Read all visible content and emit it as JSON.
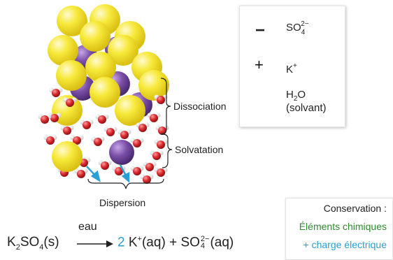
{
  "legend": {
    "sulfate": {
      "sym": "−",
      "text": "SO",
      "sub": "4",
      "sup": "2−"
    },
    "potassium": {
      "sym": "+",
      "text": "K",
      "sup": "+"
    },
    "water": {
      "text1": "H",
      "sub": "2",
      "text2": "O",
      "line2": "(solvant)"
    }
  },
  "labels": {
    "dissociation": "Dissociation",
    "solvatation": "Solvatation",
    "dispersion": "Dispersion"
  },
  "conservation": {
    "title": "Conservation :",
    "line1": "Éléments chimiques",
    "line2": "+ charge électrique"
  },
  "equation": {
    "k": "K",
    "k_sub": "2",
    "so": "SO",
    "so_sub": "4",
    "state1": "(s)",
    "over_arrow": "eau",
    "coef": "2",
    "kplus": "K",
    "kplus_sup": "+",
    "aq1": "(aq)",
    "plus": "+",
    "so2": "SO",
    "so2_sub": "4",
    "so2_sup": "2−",
    "aq2": "(aq)"
  },
  "colors": {
    "sulfate_yellow": "#f5e33a",
    "potassium_purple": "#7b4fa8",
    "oxygen_red": "#d8282c",
    "arrow_blue": "#2a9fd6",
    "green_text": "#2e8b2e",
    "blue_text": "#2a9fd6"
  }
}
